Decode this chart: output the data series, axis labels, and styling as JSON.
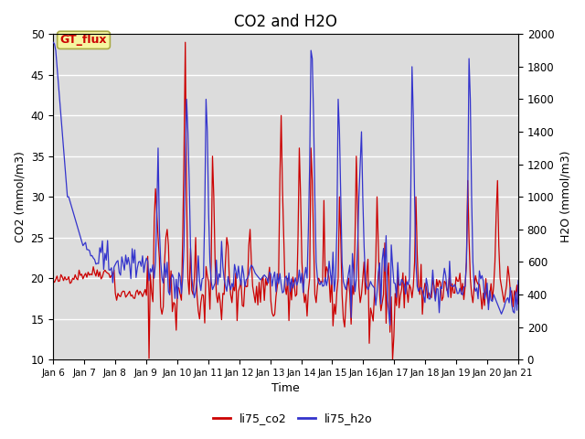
{
  "title": "CO2 and H2O",
  "xlabel": "Time",
  "ylabel_left": "CO2 (mmol/m3)",
  "ylabel_right": "H2O (mmol/m3)",
  "ylim_left": [
    10,
    50
  ],
  "ylim_right": [
    0,
    2000
  ],
  "yticks_left": [
    10,
    15,
    20,
    25,
    30,
    35,
    40,
    45,
    50
  ],
  "yticks_right": [
    0,
    200,
    400,
    600,
    800,
    1000,
    1200,
    1400,
    1600,
    1800,
    2000
  ],
  "color_co2": "#cc0000",
  "color_h2o": "#3333cc",
  "background_color": "#dcdcdc",
  "label_co2": "li75_co2",
  "label_h2o": "li75_h2o",
  "gt_flux_label": "GT_flux",
  "title_fontsize": 12,
  "axis_label_fontsize": 9,
  "tick_fontsize": 8.5
}
